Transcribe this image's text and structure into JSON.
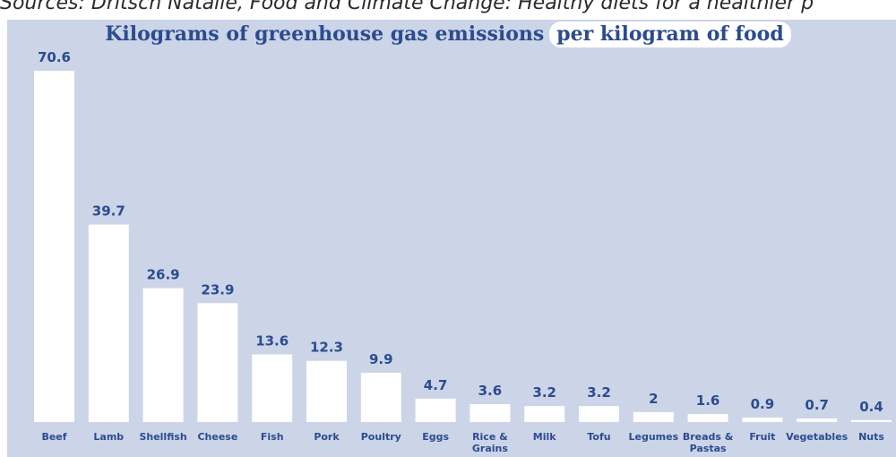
{
  "caption": "Sources: Dritsch Natalie, Food and Climate Change: Healthy diets for a healthier p",
  "colors": {
    "background": "#ccd4e8",
    "bar": "#ffffff",
    "text": "#2b4c8e"
  },
  "chart_data": {
    "type": "bar",
    "title": "Kilograms of greenhouse gas emissions",
    "title_highlight": "per kilogram of food",
    "categories": [
      "Beef",
      "Lamb",
      "Shellfish",
      "Cheese",
      "Fish",
      "Pork",
      "Poultry",
      "Eggs",
      "Rice & Grains",
      "Milk",
      "Tofu",
      "Legumes",
      "Breads & Pastas",
      "Fruit",
      "Vegetables",
      "Nuts"
    ],
    "values": [
      70.6,
      39.7,
      26.9,
      23.9,
      13.6,
      12.3,
      9.9,
      4.7,
      3.6,
      3.2,
      3.2,
      2,
      1.6,
      0.9,
      0.7,
      0.4
    ],
    "value_labels": [
      "70.6",
      "39.7",
      "26.9",
      "23.9",
      "13.6",
      "12.3",
      "9.9",
      "4.7",
      "3.6",
      "3.2",
      "3.2",
      "2",
      "1.6",
      "0.9",
      "0.7",
      "0.4"
    ],
    "xlabel": "",
    "ylabel": "",
    "ylim": [
      0,
      70.6
    ],
    "grid": false,
    "legend": "none"
  }
}
